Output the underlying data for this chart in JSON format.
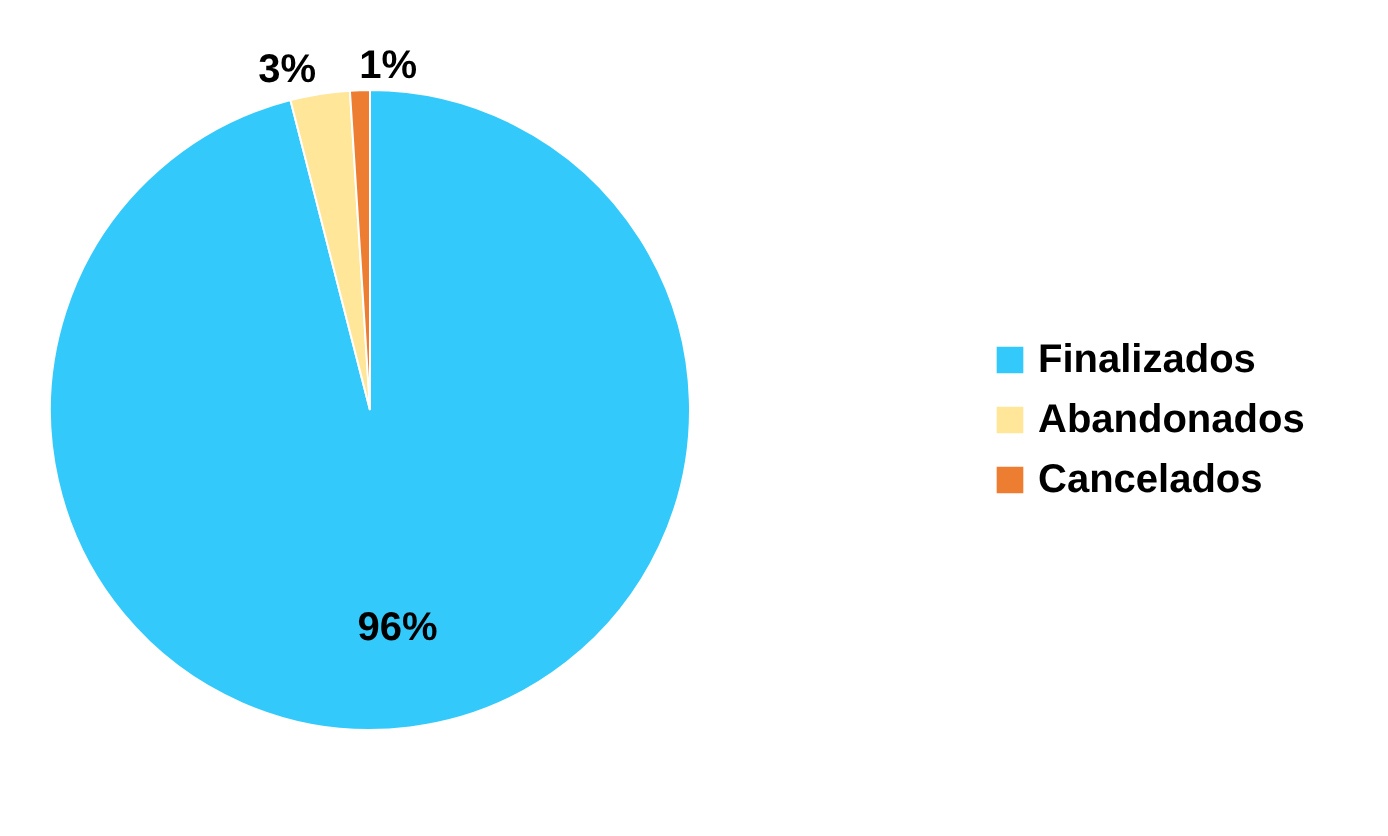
{
  "chart_data": {
    "type": "pie",
    "categories": [
      "Finalizados",
      "Abandonados",
      "Cancelados"
    ],
    "values": [
      96,
      3,
      1
    ],
    "value_labels": [
      "96%",
      "3%",
      "1%"
    ],
    "colors": [
      "#33c9fb",
      "#ffe699",
      "#ed7d31"
    ],
    "legend": "right"
  }
}
